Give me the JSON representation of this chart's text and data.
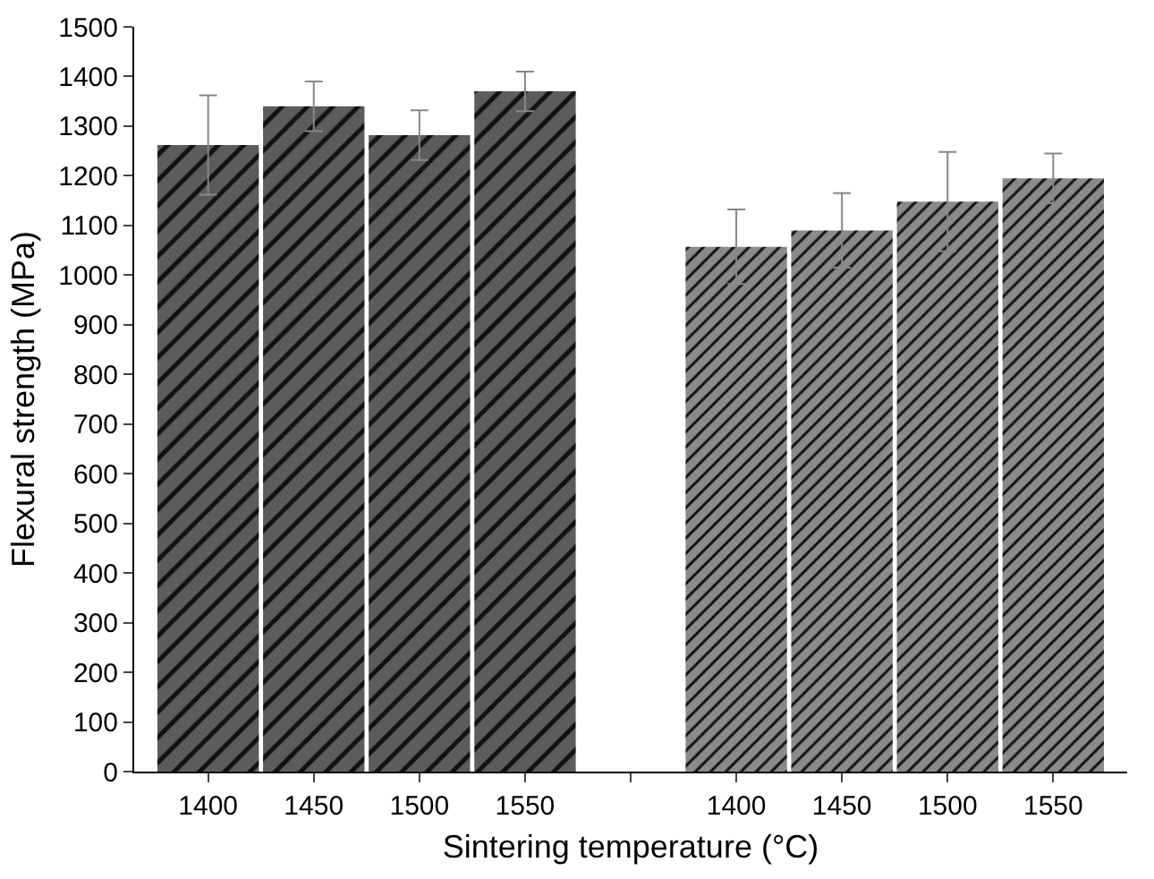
{
  "chart_data": {
    "type": "bar",
    "xlabel": "Sintering temperature (°C)",
    "ylabel": "Flexural strength (MPa)",
    "categories": [
      "1400",
      "1450",
      "1500",
      "1550",
      null,
      "1400",
      "1450",
      "1500",
      "1550"
    ],
    "series": [
      {
        "color": "#5c5c5c",
        "values": [
          1262,
          1340,
          1282,
          1370,
          null,
          null,
          null,
          null,
          null
        ],
        "errors": [
          100,
          50,
          50,
          40,
          null,
          null,
          null,
          null,
          null
        ]
      },
      {
        "color": "#8a8a8a",
        "values": [
          null,
          null,
          null,
          null,
          null,
          1057,
          1090,
          1148,
          1195
        ],
        "errors": [
          null,
          null,
          null,
          null,
          null,
          75,
          75,
          100,
          50
        ]
      }
    ],
    "ylim": [
      0,
      1500
    ],
    "yticks": [
      0,
      100,
      200,
      300,
      400,
      500,
      600,
      700,
      800,
      900,
      1000,
      1100,
      1200,
      1300,
      1400,
      1500
    ],
    "grid": false
  }
}
